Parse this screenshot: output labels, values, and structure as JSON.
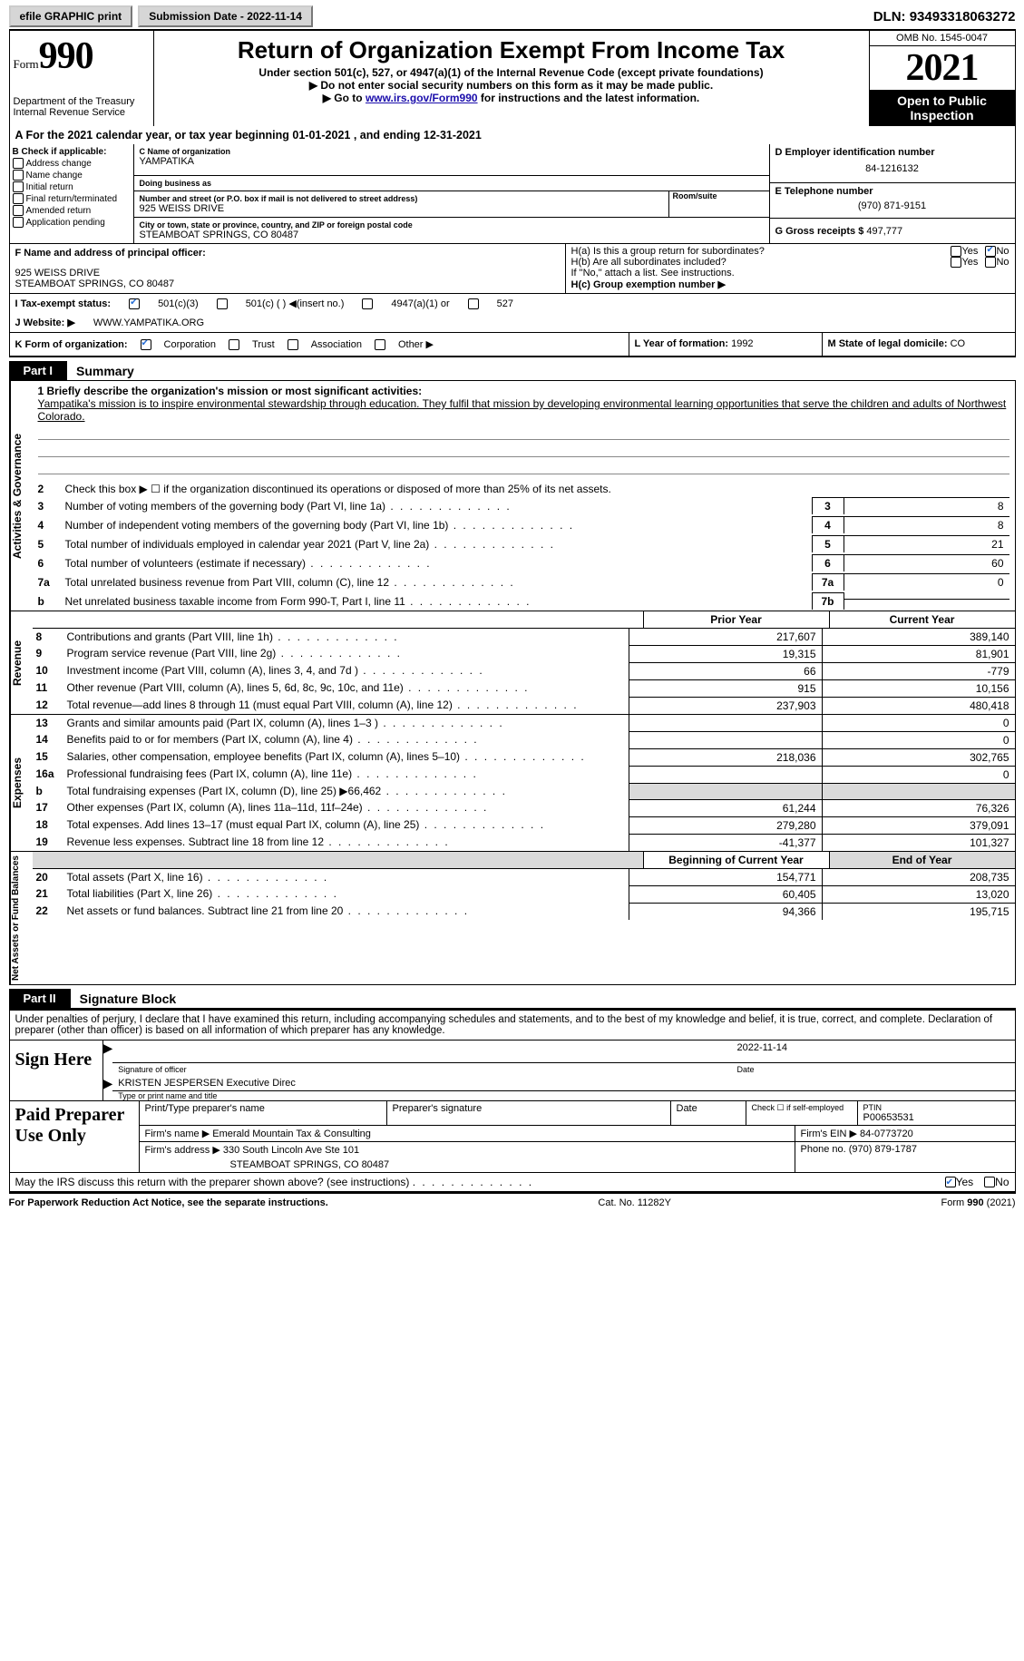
{
  "topbar": {
    "efile": "efile GRAPHIC print",
    "submission_label": "Submission Date - 2022-11-14",
    "dln": "DLN: 93493318063272"
  },
  "header": {
    "form_label": "Form",
    "form_number": "990",
    "dept": "Department of the Treasury",
    "irs": "Internal Revenue Service",
    "title": "Return of Organization Exempt From Income Tax",
    "subtitle": "Under section 501(c), 527, or 4947(a)(1) of the Internal Revenue Code (except private foundations)",
    "note1": "▶ Do not enter social security numbers on this form as it may be made public.",
    "note2_pre": "▶ Go to ",
    "note2_link": "www.irs.gov/Form990",
    "note2_post": " for instructions and the latest information.",
    "omb": "OMB No. 1545-0047",
    "year": "2021",
    "open": "Open to Public Inspection"
  },
  "A": {
    "text": "A For the 2021 calendar year, or tax year beginning 01-01-2021   , and ending 12-31-2021"
  },
  "B": {
    "label": "B Check if applicable:",
    "opts": [
      "Address change",
      "Name change",
      "Initial return",
      "Final return/terminated",
      "Amended return",
      "Application pending"
    ]
  },
  "C": {
    "name_label": "C Name of organization",
    "name": "YAMPATIKA",
    "dba_label": "Doing business as",
    "dba": "",
    "street_label": "Number and street (or P.O. box if mail is not delivered to street address)",
    "room_label": "Room/suite",
    "street": "925 WEISS DRIVE",
    "city_label": "City or town, state or province, country, and ZIP or foreign postal code",
    "city": "STEAMBOAT SPRINGS, CO  80487"
  },
  "D": {
    "label": "D Employer identification number",
    "val": "84-1216132"
  },
  "E": {
    "label": "E Telephone number",
    "val": "(970) 871-9151"
  },
  "G": {
    "label": "G Gross receipts $",
    "val": "497,777"
  },
  "F": {
    "label": "F Name and address of principal officer:",
    "addr1": "925 WEISS DRIVE",
    "addr2": "STEAMBOAT SPRINGS, CO  80487"
  },
  "H": {
    "a_label": "H(a)  Is this a group return for subordinates?",
    "a_yes": false,
    "a_no": true,
    "b_label": "H(b) Are all subordinates included?",
    "note": "If \"No,\" attach a list. See instructions.",
    "c_label": "H(c) Group exemption number ▶"
  },
  "I": {
    "label": "I  Tax-exempt status:",
    "c3_checked": true,
    "opts": [
      "501(c)(3)",
      "501(c) (  ) ◀(insert no.)",
      "4947(a)(1) or",
      "527"
    ]
  },
  "J": {
    "label": "J  Website: ▶",
    "val": "WWW.YAMPATIKA.ORG"
  },
  "K": {
    "label": "K Form of organization:",
    "corp_checked": true,
    "opts": [
      "Corporation",
      "Trust",
      "Association",
      "Other ▶"
    ]
  },
  "L": {
    "label": "L Year of formation:",
    "val": "1992"
  },
  "M": {
    "label": "M State of legal domicile:",
    "val": "CO"
  },
  "part1": {
    "tag": "Part I",
    "title": "Summary"
  },
  "summary": {
    "mission_label": "1  Briefly describe the organization's mission or most significant activities:",
    "mission": "Yampatika's mission is to inspire environmental stewardship through education. They fulfil that mission by developing environmental learning opportunities that serve the children and adults of Northwest Colorado.",
    "line2": "Check this box ▶ ☐  if the organization discontinued its operations or disposed of more than 25% of its net assets.",
    "gov_tab": "Activities & Governance",
    "lines": [
      {
        "n": "3",
        "txt": "Number of voting members of the governing body (Part VI, line 1a)",
        "box": "3",
        "val": "8"
      },
      {
        "n": "4",
        "txt": "Number of independent voting members of the governing body (Part VI, line 1b)",
        "box": "4",
        "val": "8"
      },
      {
        "n": "5",
        "txt": "Total number of individuals employed in calendar year 2021 (Part V, line 2a)",
        "box": "5",
        "val": "21"
      },
      {
        "n": "6",
        "txt": "Total number of volunteers (estimate if necessary)",
        "box": "6",
        "val": "60"
      },
      {
        "n": "7a",
        "txt": "Total unrelated business revenue from Part VIII, column (C), line 12",
        "box": "7a",
        "val": "0"
      },
      {
        "n": "b",
        "txt": "Net unrelated business taxable income from Form 990-T, Part I, line 11",
        "box": "7b",
        "val": ""
      }
    ]
  },
  "revenue": {
    "tab": "Revenue",
    "hdr1": "Prior Year",
    "hdr2": "Current Year",
    "lines": [
      {
        "n": "8",
        "txt": "Contributions and grants (Part VIII, line 1h)",
        "c1": "217,607",
        "c2": "389,140"
      },
      {
        "n": "9",
        "txt": "Program service revenue (Part VIII, line 2g)",
        "c1": "19,315",
        "c2": "81,901"
      },
      {
        "n": "10",
        "txt": "Investment income (Part VIII, column (A), lines 3, 4, and 7d )",
        "c1": "66",
        "c2": "-779"
      },
      {
        "n": "11",
        "txt": "Other revenue (Part VIII, column (A), lines 5, 6d, 8c, 9c, 10c, and 11e)",
        "c1": "915",
        "c2": "10,156"
      },
      {
        "n": "12",
        "txt": "Total revenue—add lines 8 through 11 (must equal Part VIII, column (A), line 12)",
        "c1": "237,903",
        "c2": "480,418"
      }
    ]
  },
  "expenses": {
    "tab": "Expenses",
    "lines": [
      {
        "n": "13",
        "txt": "Grants and similar amounts paid (Part IX, column (A), lines 1–3 )",
        "c1": "",
        "c2": "0"
      },
      {
        "n": "14",
        "txt": "Benefits paid to or for members (Part IX, column (A), line 4)",
        "c1": "",
        "c2": "0"
      },
      {
        "n": "15",
        "txt": "Salaries, other compensation, employee benefits (Part IX, column (A), lines 5–10)",
        "c1": "218,036",
        "c2": "302,765"
      },
      {
        "n": "16a",
        "txt": "Professional fundraising fees (Part IX, column (A), line 11e)",
        "c1": "",
        "c2": "0"
      },
      {
        "n": "b",
        "txt": "Total fundraising expenses (Part IX, column (D), line 25) ▶66,462",
        "c1": "shade",
        "c2": "shade"
      },
      {
        "n": "17",
        "txt": "Other expenses (Part IX, column (A), lines 11a–11d, 11f–24e)",
        "c1": "61,244",
        "c2": "76,326"
      },
      {
        "n": "18",
        "txt": "Total expenses. Add lines 13–17 (must equal Part IX, column (A), line 25)",
        "c1": "279,280",
        "c2": "379,091"
      },
      {
        "n": "19",
        "txt": "Revenue less expenses. Subtract line 18 from line 12",
        "c1": "-41,377",
        "c2": "101,327"
      }
    ]
  },
  "netassets": {
    "tab": "Net Assets or Fund Balances",
    "hdr1": "Beginning of Current Year",
    "hdr2": "End of Year",
    "lines": [
      {
        "n": "20",
        "txt": "Total assets (Part X, line 16)",
        "c1": "154,771",
        "c2": "208,735"
      },
      {
        "n": "21",
        "txt": "Total liabilities (Part X, line 26)",
        "c1": "60,405",
        "c2": "13,020"
      },
      {
        "n": "22",
        "txt": "Net assets or fund balances. Subtract line 21 from line 20",
        "c1": "94,366",
        "c2": "195,715"
      }
    ]
  },
  "part2": {
    "tag": "Part II",
    "title": "Signature Block"
  },
  "sig": {
    "declare": "Under penalties of perjury, I declare that I have examined this return, including accompanying schedules and statements, and to the best of my knowledge and belief, it is true, correct, and complete. Declaration of preparer (other than officer) is based on all information of which preparer has any knowledge.",
    "here": "Sign Here",
    "sig_label": "Signature of officer",
    "date_label": "Date",
    "date_val": "2022-11-14",
    "name_val": "KRISTEN JESPERSEN  Executive Direc",
    "name_label": "Type or print name and title"
  },
  "paid": {
    "label": "Paid Preparer Use Only",
    "r1": {
      "a": "Print/Type preparer's name",
      "b": "Preparer's signature",
      "c": "Date",
      "d": "Check ☐ if self-employed",
      "e_label": "PTIN",
      "e": "P00653531"
    },
    "r2": {
      "a": "Firm's name    ▶ Emerald Mountain Tax & Consulting",
      "b": "Firm's EIN ▶ 84-0773720"
    },
    "r3": {
      "a": "Firm's address ▶ 330 South Lincoln Ave Ste 101",
      "b": "Phone no. (970) 879-1787"
    },
    "r3b": "STEAMBOAT SPRINGS, CO  80487"
  },
  "footer": {
    "discuss": "May the IRS discuss this return with the preparer shown above? (see instructions)",
    "yes_checked": true,
    "paperwork": "For Paperwork Reduction Act Notice, see the separate instructions.",
    "cat": "Cat. No. 11282Y",
    "form": "Form 990 (2021)"
  },
  "style": {
    "link_color": "#1a0dab",
    "shade": "#dadada",
    "check_color": "#2a70d6"
  }
}
